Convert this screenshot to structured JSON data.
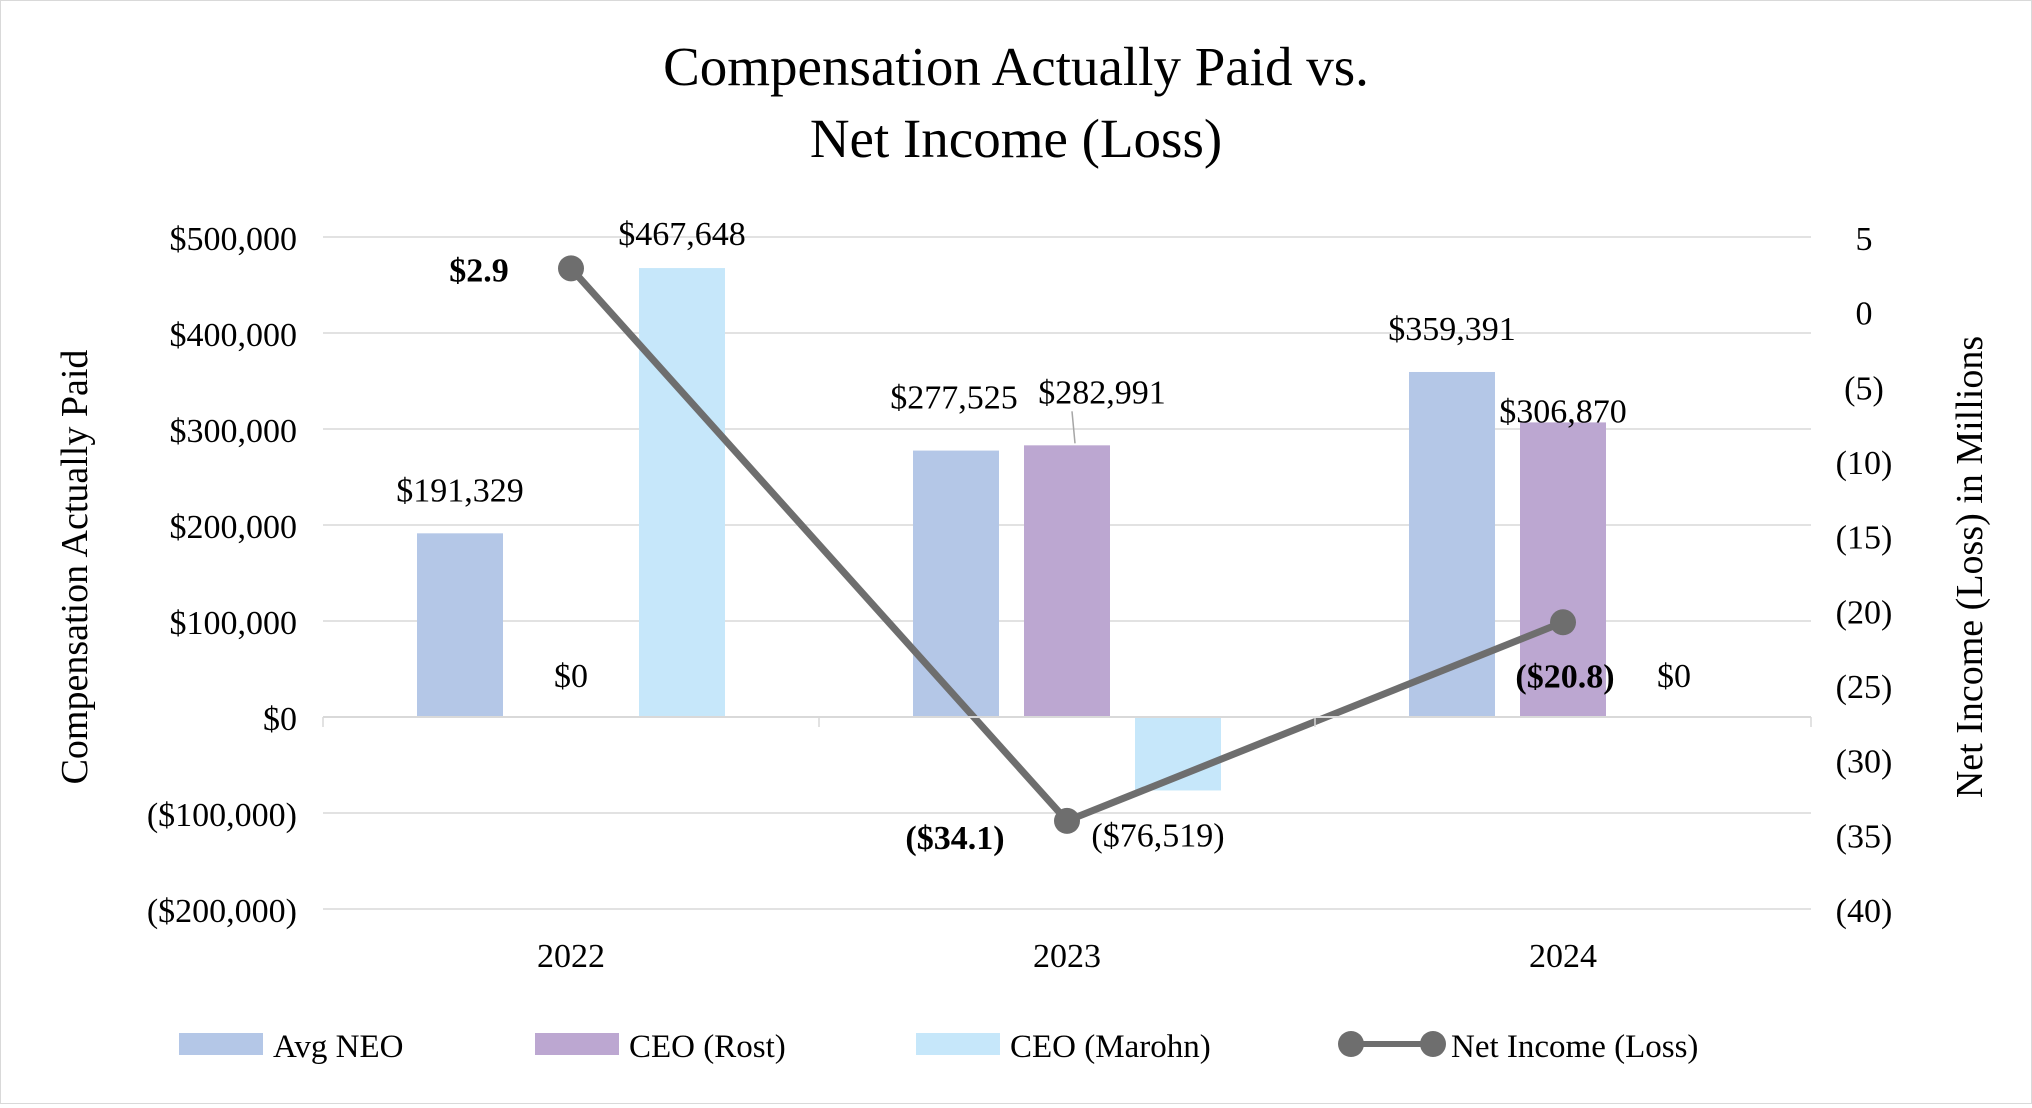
{
  "chart_data": {
    "type": "bar",
    "title_lines": [
      "Compensation Actually Paid vs.",
      "Net Income (Loss)"
    ],
    "categories": [
      "2022",
      "2023",
      "2024"
    ],
    "ylabel": "Compensation Actually Paid",
    "y2label": "Net Income (Loss) in Millions",
    "ylim": [
      -200000,
      500000
    ],
    "y2lim": [
      -40,
      5
    ],
    "y_ticks": [
      {
        "value": 500000,
        "label": "$500,000"
      },
      {
        "value": 400000,
        "label": "$400,000"
      },
      {
        "value": 300000,
        "label": "$300,000"
      },
      {
        "value": 200000,
        "label": "$200,000"
      },
      {
        "value": 100000,
        "label": "$100,000"
      },
      {
        "value": 0,
        "label": "$0"
      },
      {
        "value": -100000,
        "label": "($100,000)"
      },
      {
        "value": -200000,
        "label": "($200,000)"
      }
    ],
    "y2_ticks": [
      {
        "value": 5,
        "label": "5"
      },
      {
        "value": 0,
        "label": "0"
      },
      {
        "value": -5,
        "label": "(5)"
      },
      {
        "value": -10,
        "label": "(10)"
      },
      {
        "value": -15,
        "label": "(15)"
      },
      {
        "value": -20,
        "label": "(20)"
      },
      {
        "value": -25,
        "label": "(25)"
      },
      {
        "value": -30,
        "label": "(30)"
      },
      {
        "value": -35,
        "label": "(35)"
      },
      {
        "value": -40,
        "label": "(40)"
      }
    ],
    "series": [
      {
        "name": "Avg NEO",
        "type": "bar",
        "color": "#b4c7e7",
        "values": [
          191329,
          277525,
          359391
        ],
        "labels": [
          "$191,329",
          "$277,525",
          "$359,391"
        ]
      },
      {
        "name": "CEO (Rost)",
        "type": "bar",
        "color": "#bca7d1",
        "values": [
          0,
          282991,
          306870
        ],
        "labels": [
          "$0",
          "$282,991",
          "$306,870"
        ]
      },
      {
        "name": "CEO (Marohn)",
        "type": "bar",
        "color": "#c6e7fa",
        "values": [
          467648,
          -76519,
          0
        ],
        "labels": [
          "$467,648",
          "($76,519)",
          "$0"
        ]
      },
      {
        "name": "Net Income (Loss)",
        "type": "line",
        "axis": "secondary",
        "color": "#6e6e6e",
        "values": [
          2.9,
          -34.1,
          -20.8
        ],
        "labels": [
          "$2.9",
          "($34.1)",
          "($20.8)"
        ]
      }
    ],
    "legend_position": "bottom",
    "grid": true
  }
}
